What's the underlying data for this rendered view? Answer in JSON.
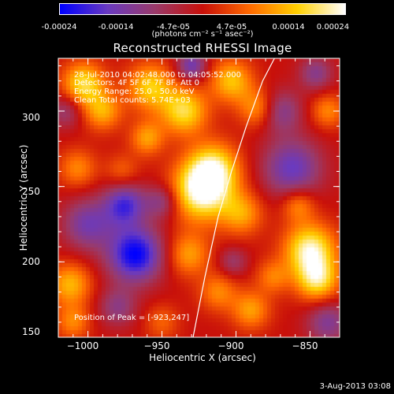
{
  "colorbar": {
    "ticks": [
      "-0.00024",
      "-0.00014",
      "-4.7e-05",
      "4.7e-05",
      "0.00014",
      "0.00024"
    ],
    "units": "(photons cm⁻² s⁻¹ asec⁻²)",
    "colors": [
      "#0000ff",
      "#6a3ac0",
      "#9a3a6a",
      "#c8100a",
      "#ff6a00",
      "#ffd000",
      "#ffffff"
    ]
  },
  "header": {
    "title": "Reconstructed RHESSI Image",
    "info_lines": [
      "28-Jul-2010 04:02:48.000 to 04:05:52.000",
      "Detectors: 4F 5F 6F 7F 8F, Att 0",
      "Energy Range: 25.0 - 50.0 keV",
      "Clean     Total counts: 5.74E+03"
    ],
    "peak_label": "Position of Peak = [-923,247]"
  },
  "chart_data": {
    "type": "heatmap",
    "title": "Reconstructed RHESSI Image",
    "xlabel": "Heliocentric X (arcsec)",
    "ylabel": "Heliocentric Y (arcsec)",
    "xlim": [
      -1020,
      -830
    ],
    "ylim": [
      150,
      335
    ],
    "xticks": [
      -1000,
      -950,
      -900,
      -850
    ],
    "yticks": [
      150,
      200,
      250,
      300
    ],
    "xtick_labels": [
      "−1000",
      "−950",
      "−900",
      "−850"
    ],
    "ytick_labels": [
      "150",
      "200",
      "250",
      "300"
    ],
    "clim": [
      -0.00024,
      0.00024
    ],
    "peak": [
      -923,
      247
    ],
    "limb_points": [
      [
        -929,
        150
      ],
      [
        -921,
        190
      ],
      [
        -912,
        230
      ],
      [
        -903,
        260
      ],
      [
        -893,
        290
      ],
      [
        -882,
        320
      ],
      [
        -874,
        335
      ]
    ],
    "blobs": [
      {
        "x": -923,
        "y": 247,
        "r": 14,
        "v": 0.00024
      },
      {
        "x": -915,
        "y": 262,
        "r": 12,
        "v": 0.00017
      },
      {
        "x": -1003,
        "y": 318,
        "r": 10,
        "v": 0.00018
      },
      {
        "x": -990,
        "y": 300,
        "r": 9,
        "v": 0.00013
      },
      {
        "x": -958,
        "y": 316,
        "r": 11,
        "v": 0.00016
      },
      {
        "x": -935,
        "y": 300,
        "r": 11,
        "v": 0.00018
      },
      {
        "x": -903,
        "y": 320,
        "r": 10,
        "v": 0.00015
      },
      {
        "x": -885,
        "y": 302,
        "r": 9,
        "v": 0.00012
      },
      {
        "x": -960,
        "y": 282,
        "r": 8,
        "v": 0.00012
      },
      {
        "x": -1007,
        "y": 262,
        "r": 9,
        "v": 0.0001
      },
      {
        "x": -977,
        "y": 260,
        "r": 8,
        "v": 7e-05
      },
      {
        "x": -896,
        "y": 232,
        "r": 10,
        "v": 0.00012
      },
      {
        "x": -850,
        "y": 208,
        "r": 12,
        "v": 0.00022
      },
      {
        "x": -845,
        "y": 188,
        "r": 10,
        "v": 0.00018
      },
      {
        "x": -858,
        "y": 238,
        "r": 8,
        "v": 0.00011
      },
      {
        "x": -1012,
        "y": 185,
        "r": 10,
        "v": 0.00014
      },
      {
        "x": -1010,
        "y": 160,
        "r": 8,
        "v": 0.0001
      },
      {
        "x": -932,
        "y": 205,
        "r": 10,
        "v": 0.00012
      },
      {
        "x": -912,
        "y": 180,
        "r": 9,
        "v": 0.0001
      },
      {
        "x": -890,
        "y": 168,
        "r": 9,
        "v": 0.00012
      },
      {
        "x": -875,
        "y": 190,
        "r": 8,
        "v": 9e-05
      },
      {
        "x": -950,
        "y": 160,
        "r": 8,
        "v": 7e-05
      },
      {
        "x": -838,
        "y": 300,
        "r": 8,
        "v": 0.0001
      },
      {
        "x": -968,
        "y": 205,
        "r": 13,
        "v": -0.00024
      },
      {
        "x": -975,
        "y": 238,
        "r": 10,
        "v": -0.00018
      },
      {
        "x": -862,
        "y": 262,
        "r": 14,
        "v": -0.00016
      },
      {
        "x": -870,
        "y": 300,
        "r": 10,
        "v": -0.00012
      },
      {
        "x": -1000,
        "y": 225,
        "r": 12,
        "v": -0.00014
      },
      {
        "x": -950,
        "y": 240,
        "r": 8,
        "v": -0.00011
      },
      {
        "x": -838,
        "y": 160,
        "r": 10,
        "v": -0.00012
      },
      {
        "x": -902,
        "y": 200,
        "r": 7,
        "v": -8e-05
      },
      {
        "x": -1015,
        "y": 300,
        "r": 8,
        "v": -9e-05
      },
      {
        "x": -980,
        "y": 170,
        "r": 9,
        "v": -0.0001
      },
      {
        "x": -930,
        "y": 330,
        "r": 7,
        "v": -0.00015
      },
      {
        "x": -846,
        "y": 325,
        "r": 8,
        "v": -0.00011
      }
    ]
  },
  "footer": {
    "date_stamp": "3-Aug-2013 03:08"
  }
}
